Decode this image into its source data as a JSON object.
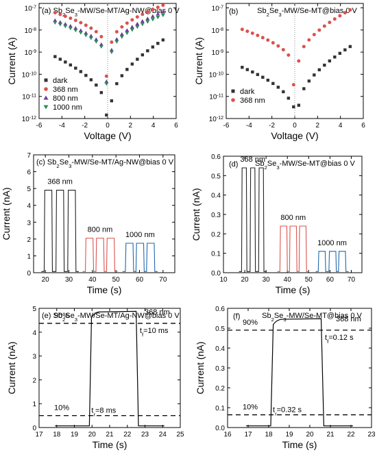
{
  "chart_data": [
    {
      "id": "a",
      "type": "scatter",
      "title": [
        "(a) Sb",
        "2",
        "Se",
        "3",
        "-MW/Se-MT/Ag-NW@bias 0 V"
      ],
      "xlabel": "Voltage (V)",
      "ylabel": "Current (A)",
      "xlim": [
        -6,
        6
      ],
      "ylog": [
        -12,
        -6.8
      ],
      "xticks": [
        -6,
        -4,
        -2,
        0,
        2,
        4,
        6
      ],
      "ytick_base": "10",
      "yticks": [
        -12,
        -11,
        -10,
        -9,
        -8,
        -7
      ],
      "legend": "bottom-left",
      "series": [
        {
          "name": "dark",
          "color": "#333333",
          "marker": "square",
          "vshape": [
            -9.1,
            -11.2,
            -8.4
          ],
          "vmin": -12.1
        },
        {
          "name": "368  nm",
          "color": "#d9534f",
          "marker": "circle",
          "vshape": [
            -7.15,
            -8.55,
            -6.85
          ],
          "vmin": -10.7
        },
        {
          "name": "800  nm",
          "color": "#6a3d9a",
          "marker": "triangle",
          "vshape": [
            -7.5,
            -8.9,
            -7.15
          ],
          "vmin": -10.9
        },
        {
          "name": "1000  nm",
          "color": "#2e8b57",
          "marker": "tri-down",
          "vshape": [
            -7.6,
            -9.0,
            -7.3
          ],
          "vmin": -11.0
        }
      ]
    },
    {
      "id": "b",
      "type": "scatter",
      "title": [
        "Sb",
        "2",
        "Se",
        "3",
        "-MW/Se-MT@bias 0 V"
      ],
      "label": "(b)",
      "xlabel": "Voltage (V)",
      "ylabel": "Current (A)",
      "xlim": [
        -6,
        6
      ],
      "ylog": [
        -12,
        -6.8
      ],
      "xticks": [
        -6,
        -4,
        -2,
        0,
        2,
        4,
        6
      ],
      "ytick_base": "10",
      "yticks": [
        -12,
        -11,
        -10,
        -9,
        -8,
        -7
      ],
      "legend": "bottom-left",
      "series": [
        {
          "name": "dark",
          "color": "#333333",
          "marker": "square",
          "vshape": [
            -9.6,
            -11.4,
            -8.7
          ],
          "vmin": -11.5
        },
        {
          "name": "368  nm",
          "color": "#d9534f",
          "marker": "circle",
          "vshape": [
            -7.9,
            -9.4,
            -7.05
          ],
          "vmin": -10.9
        }
      ]
    },
    {
      "id": "c",
      "type": "line",
      "title": [
        "(c) Sb",
        "2",
        "Se",
        "3",
        "-MW/Se-MT/Ag-NW@bias 0 V"
      ],
      "xlabel": "Time (s)",
      "ylabel": "Current (nA)",
      "xlim": [
        15,
        75
      ],
      "ylim": [
        0,
        7
      ],
      "xticks": [
        20,
        30,
        40,
        50,
        60,
        70
      ],
      "yticks": [
        0,
        1,
        2,
        3,
        4,
        5,
        6,
        7
      ],
      "groups": [
        {
          "label": "368 nm",
          "color": "#222222",
          "level": 4.9,
          "pulses": [
            [
              19.5,
              23
            ],
            [
              24.5,
              28
            ],
            [
              29.5,
              33
            ]
          ]
        },
        {
          "label": "800 nm",
          "color": "#d9534f",
          "level": 2.05,
          "pulses": [
            [
              37,
              40.5
            ],
            [
              41.5,
              45
            ],
            [
              46,
              49.5
            ]
          ]
        },
        {
          "label": "1000 nm",
          "color": "#2166ac",
          "level": 1.75,
          "pulses": [
            [
              54,
              57.5
            ],
            [
              58.5,
              62
            ],
            [
              63,
              66.5
            ]
          ]
        }
      ]
    },
    {
      "id": "d",
      "type": "line",
      "title": [
        "Sb",
        "2",
        "Se",
        "3",
        "-MW/Se-MT@bias 0 V"
      ],
      "label": "(d)",
      "xlabel": "Time (s)",
      "ylabel": "Current (nA)",
      "xlim": [
        10,
        75
      ],
      "ylim": [
        0,
        0.6
      ],
      "xticks": [
        10,
        20,
        30,
        40,
        50,
        60,
        70
      ],
      "yticks": [
        0.0,
        0.1,
        0.2,
        0.3,
        0.4,
        0.5,
        0.6
      ],
      "groups": [
        {
          "label": "368 nm",
          "color": "#222222",
          "level": 0.54,
          "pulses": [
            [
              18.5,
              21
            ],
            [
              22.5,
              25
            ],
            [
              26.5,
              29
            ]
          ]
        },
        {
          "label": "800 nm",
          "color": "#d9534f",
          "level": 0.24,
          "pulses": [
            [
              36.5,
              40
            ],
            [
              41,
              44.5
            ],
            [
              45.5,
              49
            ]
          ]
        },
        {
          "label": "1000 nm",
          "color": "#2166ac",
          "level": 0.11,
          "pulses": [
            [
              54.5,
              58
            ],
            [
              59.5,
              63
            ],
            [
              64,
              67.5
            ]
          ]
        }
      ]
    },
    {
      "id": "e",
      "type": "line",
      "title": [
        "(e) Sb",
        "2",
        "Se",
        "3",
        "-MW/Se-MT/Ag-NW@bias 0 V"
      ],
      "xlabel": "Time (s)",
      "ylabel": "Current (nA)",
      "xlim": [
        17,
        25
      ],
      "ylim": [
        0,
        5
      ],
      "xticks": [
        17,
        18,
        19,
        20,
        21,
        22,
        23,
        24,
        25
      ],
      "yticks": [
        0,
        1,
        2,
        3,
        4,
        5
      ],
      "pulse": {
        "on": 19.85,
        "off": 22.55,
        "level": 4.85
      },
      "hlines": [
        {
          "y": 4.37,
          "label": "90%"
        },
        {
          "y": 0.5,
          "label": "10%"
        }
      ],
      "wavelength": "368 nm",
      "rise": [
        "t",
        "r",
        "=8 ms"
      ],
      "fall": [
        "t",
        "f",
        "=10 ms"
      ]
    },
    {
      "id": "f",
      "type": "line",
      "title": [
        "Sb",
        "2",
        "Se",
        "3",
        "-MW/Se-MT@bias 0 V"
      ],
      "label": "(f)",
      "xlabel": "Time (s)",
      "ylabel": "Current (nA)",
      "xlim": [
        16,
        23
      ],
      "ylim": [
        0,
        0.6
      ],
      "xticks": [
        16,
        17,
        18,
        19,
        20,
        21,
        22,
        23
      ],
      "yticks": [
        0.0,
        0.1,
        0.2,
        0.3,
        0.4,
        0.5,
        0.6
      ],
      "pulse": {
        "on": 18.1,
        "off": 20.6,
        "level": 0.545
      },
      "hlines": [
        {
          "y": 0.49,
          "label": "90%"
        },
        {
          "y": 0.064,
          "label": "10%"
        }
      ],
      "wavelength": "368 nm",
      "rise": [
        "t",
        "r",
        "=0.32 s"
      ],
      "fall": [
        "t",
        "f",
        "=0.12 s"
      ]
    }
  ]
}
